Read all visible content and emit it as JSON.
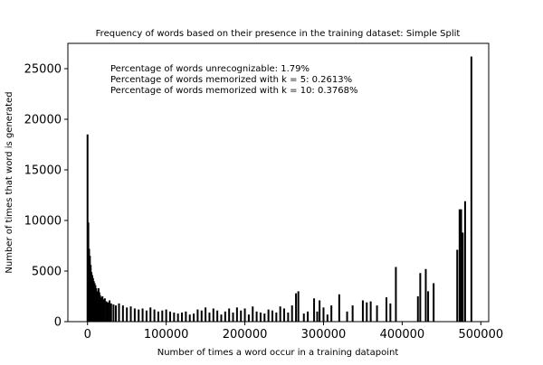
{
  "colors": {
    "bar": "#000000",
    "axis": "#000000",
    "background": "#ffffff"
  },
  "chart_data": {
    "type": "bar",
    "title": "Frequency of words based on their presence in the training dataset: Simple Split",
    "xlabel": "Number of times a word occur in a training datapoint",
    "ylabel": "Number of times that word is generated",
    "xlim": [
      -25000,
      510000
    ],
    "ylim": [
      0,
      27500
    ],
    "xticks": [
      0,
      100000,
      200000,
      300000,
      400000,
      500000
    ],
    "xtick_labels": [
      "0",
      "100000",
      "200000",
      "300000",
      "400000",
      "500000"
    ],
    "yticks": [
      0,
      5000,
      10000,
      15000,
      20000,
      25000
    ],
    "ytick_labels": [
      "0",
      "5000",
      "10000",
      "15000",
      "20000",
      "25000"
    ],
    "grid": false,
    "annotations": [
      "Percentage of words unrecognizable: 1.79%",
      "Percentage of words memorized with k = 5: 0.2613%",
      "Percentage of words memorized with k = 10: 0.3768%"
    ],
    "series": [
      {
        "x": [
          0,
          1000,
          2000,
          3000,
          4000,
          5000,
          6000,
          7000,
          8000,
          9000,
          10000,
          11000,
          12000,
          13000,
          14000,
          15000,
          16000,
          17000,
          18000,
          19000,
          20000,
          22000,
          24000,
          26000,
          28000,
          30000,
          33000,
          36000,
          40000,
          45000,
          50000,
          55000,
          60000,
          65000,
          70000,
          75000,
          80000,
          85000,
          90000,
          95000,
          100000,
          105000,
          110000,
          115000,
          120000,
          125000,
          130000,
          135000,
          140000,
          145000,
          150000,
          155000,
          160000,
          165000,
          170000,
          175000,
          180000,
          185000,
          190000,
          195000,
          200000,
          205000,
          210000,
          215000,
          220000,
          225000,
          230000,
          235000,
          240000,
          245000,
          250000,
          255000,
          260000,
          265000,
          268000,
          275000,
          280000,
          288000,
          292000,
          295000,
          300000,
          305000,
          310000,
          320000,
          330000,
          337000,
          350000,
          355000,
          360000,
          368000,
          380000,
          385000,
          392000,
          420000,
          423000,
          430000,
          433000,
          440000,
          470000,
          473000,
          475000,
          477000,
          480000,
          488000
        ],
        "values": [
          18500,
          9800,
          7200,
          6500,
          5600,
          4900,
          4600,
          4300,
          4000,
          3800,
          3600,
          3300,
          3000,
          2800,
          3300,
          2900,
          2600,
          2400,
          2200,
          2500,
          2200,
          2300,
          2000,
          1900,
          2100,
          1800,
          1700,
          1600,
          1800,
          1600,
          1400,
          1500,
          1300,
          1200,
          1300,
          1100,
          1400,
          1200,
          1000,
          1100,
          1200,
          1000,
          900,
          800,
          900,
          1000,
          700,
          800,
          1200,
          1100,
          1400,
          900,
          1300,
          1100,
          700,
          1000,
          1300,
          900,
          1400,
          1100,
          1300,
          700,
          1500,
          1000,
          900,
          800,
          1200,
          1100,
          900,
          1500,
          1300,
          900,
          1600,
          2800,
          3000,
          800,
          1000,
          2300,
          1000,
          2100,
          1400,
          700,
          1600,
          2700,
          1000,
          1600,
          2100,
          1900,
          2000,
          1600,
          2400,
          1800,
          5400,
          2500,
          4800,
          5200,
          3000,
          3800,
          7100,
          11100,
          11100,
          8800,
          11900,
          26200
        ]
      }
    ]
  }
}
